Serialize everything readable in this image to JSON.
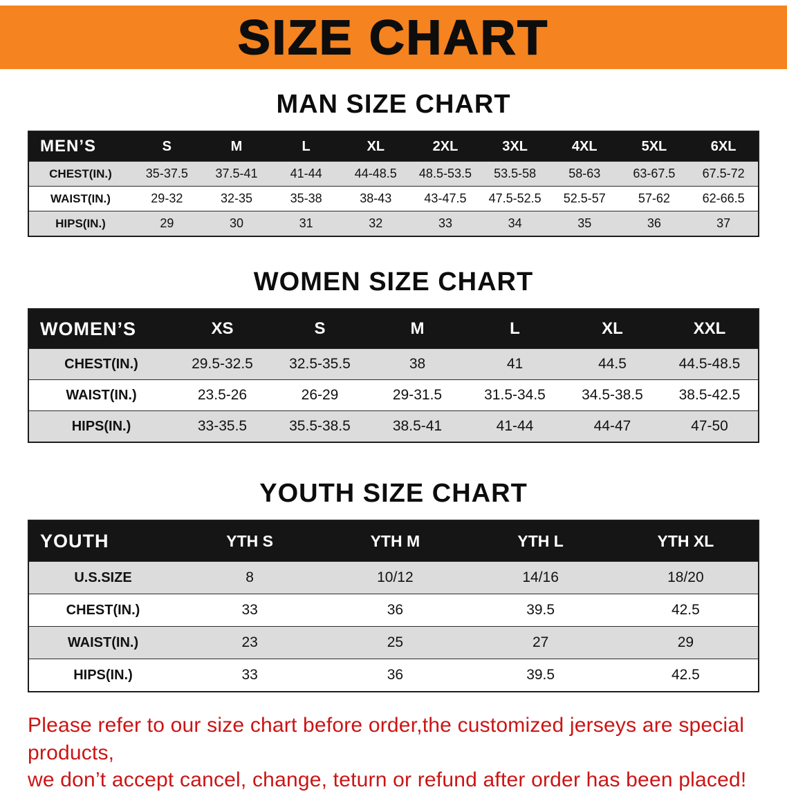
{
  "banner": {
    "title": "SIZE CHART",
    "bg_color": "#F5831F",
    "text_color": "#0d0d0d"
  },
  "sections": [
    {
      "title": "MAN SIZE CHART",
      "corner_label": "MEN’S",
      "columns": [
        "S",
        "M",
        "L",
        "XL",
        "2XL",
        "3XL",
        "4XL",
        "5XL",
        "6XL"
      ],
      "rows": [
        {
          "label": "CHEST(IN.)",
          "values": [
            "35-37.5",
            "37.5-41",
            "41-44",
            "44-48.5",
            "48.5-53.5",
            "53.5-58",
            "58-63",
            "63-67.5",
            "67.5-72"
          ]
        },
        {
          "label": "WAIST(IN.)",
          "values": [
            "29-32",
            "32-35",
            "35-38",
            "38-43",
            "43-47.5",
            "47.5-52.5",
            "52.5-57",
            "57-62",
            "62-66.5"
          ]
        },
        {
          "label": "HIPS(IN.)",
          "values": [
            "29",
            "30",
            "31",
            "32",
            "33",
            "34",
            "35",
            "36",
            "37"
          ]
        }
      ]
    },
    {
      "title": "WOMEN SIZE CHART",
      "corner_label": "WOMEN’S",
      "columns": [
        "XS",
        "S",
        "M",
        "L",
        "XL",
        "XXL"
      ],
      "rows": [
        {
          "label": "CHEST(IN.)",
          "values": [
            "29.5-32.5",
            "32.5-35.5",
            "38",
            "41",
            "44.5",
            "44.5-48.5"
          ]
        },
        {
          "label": "WAIST(IN.)",
          "values": [
            "23.5-26",
            "26-29",
            "29-31.5",
            "31.5-34.5",
            "34.5-38.5",
            "38.5-42.5"
          ]
        },
        {
          "label": "HIPS(IN.)",
          "values": [
            "33-35.5",
            "35.5-38.5",
            "38.5-41",
            "41-44",
            "44-47",
            "47-50"
          ]
        }
      ]
    },
    {
      "title": "YOUTH SIZE CHART",
      "corner_label": "YOUTH",
      "columns": [
        "YTH S",
        "YTH M",
        "YTH L",
        "YTH XL"
      ],
      "rows": [
        {
          "label": "U.S.SIZE",
          "values": [
            "8",
            "10/12",
            "14/16",
            "18/20"
          ]
        },
        {
          "label": "CHEST(IN.)",
          "values": [
            "33",
            "36",
            "39.5",
            "42.5"
          ]
        },
        {
          "label": "WAIST(IN.)",
          "values": [
            "23",
            "25",
            "27",
            "29"
          ]
        },
        {
          "label": "HIPS(IN.)",
          "values": [
            "33",
            "36",
            "39.5",
            "42.5"
          ]
        }
      ]
    }
  ],
  "disclaimer": {
    "line1": "Please refer to our size chart before order,the customized jerseys are special products,",
    "line2": "we don’t accept cancel, change, teturn or refund after order has been placed!",
    "color": "#cc1414"
  }
}
